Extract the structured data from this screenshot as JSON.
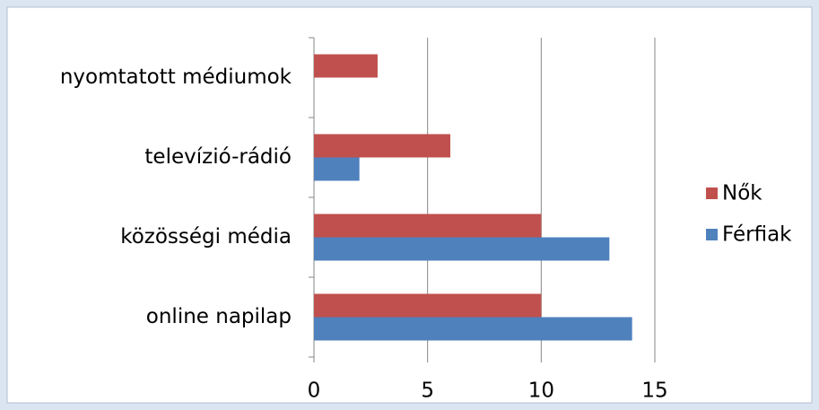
{
  "chart_data": {
    "type": "bar",
    "orientation": "horizontal",
    "categories": [
      "online napilap",
      "közösségi média",
      "televízió-rádió",
      "nyomtatott médiumok"
    ],
    "series": [
      {
        "name": "Nők",
        "color": "#c0504d",
        "values": [
          10,
          10,
          6,
          2.8
        ]
      },
      {
        "name": "Férfiak",
        "color": "#4f81bd",
        "values": [
          14,
          13,
          2,
          0
        ]
      }
    ],
    "xlim": [
      0,
      15
    ],
    "xticks": [
      0,
      5,
      10,
      15
    ],
    "grid": true,
    "legend": "right"
  }
}
